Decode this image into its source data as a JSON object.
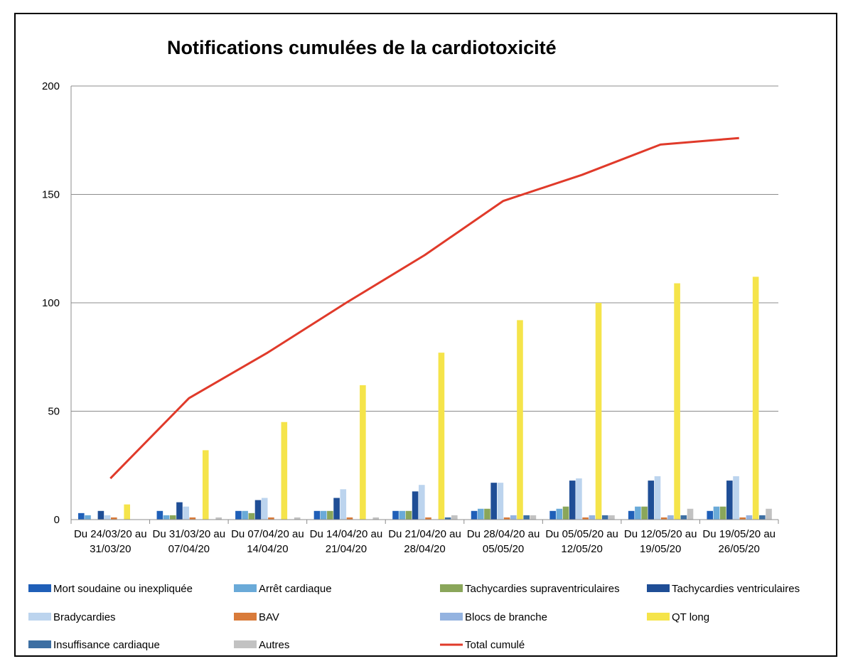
{
  "chart_data": {
    "type": "bar",
    "title": "Notifications cumulées de la cardiotoxicité",
    "xlabel": "",
    "ylabel": "",
    "ylim": [
      0,
      200
    ],
    "yticks": [
      0,
      50,
      100,
      150,
      200
    ],
    "grid": true,
    "legend": "bottom",
    "categories": [
      [
        "Du 24/03/20 au",
        "31/03/20"
      ],
      [
        "Du 31/03/20 au",
        "07/04/20"
      ],
      [
        "Du 07/04/20 au",
        "14/04/20"
      ],
      [
        "Du 14/04/20 au",
        "21/04/20"
      ],
      [
        "Du 21/04/20 au",
        "28/04/20"
      ],
      [
        "Du 28/04/20 au",
        "05/05/20"
      ],
      [
        "Du 05/05/20 au",
        "12/05/20"
      ],
      [
        "Du 12/05/20 au",
        "19/05/20"
      ],
      [
        "Du 19/05/20 au",
        "26/05/20"
      ]
    ],
    "series": [
      {
        "name": "Mort soudaine ou inexpliquée",
        "color": "#1f5fb8",
        "values": [
          3,
          4,
          4,
          4,
          4,
          4,
          4,
          4,
          4
        ]
      },
      {
        "name": "Arrêt cardiaque",
        "color": "#6aaad8",
        "values": [
          2,
          2,
          4,
          4,
          4,
          5,
          5,
          6,
          6
        ]
      },
      {
        "name": "Tachycardies supraventriculaires",
        "color": "#8aa65a",
        "values": [
          0,
          2,
          3,
          4,
          4,
          5,
          6,
          6,
          6
        ]
      },
      {
        "name": "Tachycardies ventriculaires",
        "color": "#1f4e96",
        "values": [
          4,
          8,
          9,
          10,
          13,
          17,
          18,
          18,
          18
        ]
      },
      {
        "name": "Bradycardies",
        "color": "#bcd4ee",
        "values": [
          2,
          6,
          10,
          14,
          16,
          17,
          19,
          20,
          20
        ]
      },
      {
        "name": "BAV",
        "color": "#d97b3a",
        "values": [
          1,
          1,
          1,
          1,
          1,
          1,
          1,
          1,
          1
        ]
      },
      {
        "name": "Blocs de branche",
        "color": "#94b3e0",
        "values": [
          0,
          0,
          0,
          0,
          0,
          2,
          2,
          2,
          2
        ]
      },
      {
        "name": "QT long",
        "color": "#f5e44a",
        "values": [
          7,
          32,
          45,
          62,
          77,
          92,
          100,
          109,
          112
        ]
      },
      {
        "name": "Insuffisance cardiaque",
        "color": "#3d6fa3",
        "values": [
          0,
          0,
          0,
          0,
          1,
          2,
          2,
          2,
          2
        ]
      },
      {
        "name": "Autres",
        "color": "#c2c2c2",
        "values": [
          0,
          1,
          1,
          1,
          2,
          2,
          2,
          5,
          5
        ]
      }
    ],
    "line_series": {
      "name": "Total cumulé",
      "color": "#e03a2a",
      "values": [
        19,
        56,
        77,
        100,
        122,
        147,
        159,
        173,
        176
      ]
    }
  }
}
